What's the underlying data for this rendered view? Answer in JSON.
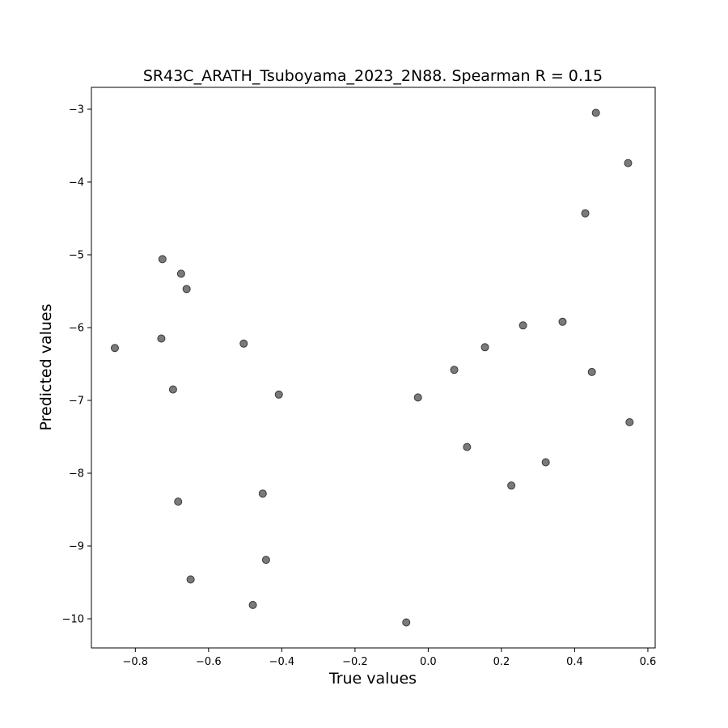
{
  "chart_data": {
    "type": "scatter",
    "title": "SR43C_ARATH_Tsuboyama_2023_2N88. Spearman R = 0.15",
    "xlabel": "True values",
    "ylabel": "Predicted values",
    "xlim": [
      -0.92,
      0.62
    ],
    "ylim": [
      -10.4,
      -2.7
    ],
    "xticks": [
      -0.8,
      -0.6,
      -0.4,
      -0.2,
      0.0,
      0.2,
      0.4,
      0.6
    ],
    "xtick_labels": [
      "−0.8",
      "−0.6",
      "−0.4",
      "−0.2",
      "0.0",
      "0.2",
      "0.4",
      "0.6"
    ],
    "yticks": [
      -3,
      -4,
      -5,
      -6,
      -7,
      -8,
      -9,
      -10
    ],
    "ytick_labels": [
      "−3",
      "−4",
      "−5",
      "−6",
      "−7",
      "−8",
      "−9",
      "−10"
    ],
    "grid": false,
    "marker_fill": "#7a7a7a",
    "marker_edge": "#3a3a3a",
    "points": [
      {
        "x": 0.458,
        "y": -3.05
      },
      {
        "x": 0.546,
        "y": -3.74
      },
      {
        "x": 0.429,
        "y": -4.43
      },
      {
        "x": -0.726,
        "y": -5.06
      },
      {
        "x": -0.675,
        "y": -5.26
      },
      {
        "x": -0.66,
        "y": -5.47
      },
      {
        "x": -0.856,
        "y": -6.28
      },
      {
        "x": -0.729,
        "y": -6.15
      },
      {
        "x": -0.504,
        "y": -6.22
      },
      {
        "x": 0.259,
        "y": -5.97
      },
      {
        "x": 0.367,
        "y": -5.92
      },
      {
        "x": 0.155,
        "y": -6.27
      },
      {
        "x": 0.071,
        "y": -6.58
      },
      {
        "x": 0.447,
        "y": -6.61
      },
      {
        "x": -0.697,
        "y": -6.85
      },
      {
        "x": -0.408,
        "y": -6.92
      },
      {
        "x": -0.028,
        "y": -6.96
      },
      {
        "x": 0.55,
        "y": -7.3
      },
      {
        "x": 0.106,
        "y": -7.64
      },
      {
        "x": 0.321,
        "y": -7.85
      },
      {
        "x": 0.227,
        "y": -8.17
      },
      {
        "x": -0.452,
        "y": -8.28
      },
      {
        "x": -0.683,
        "y": -8.39
      },
      {
        "x": -0.443,
        "y": -9.19
      },
      {
        "x": -0.649,
        "y": -9.46
      },
      {
        "x": -0.479,
        "y": -9.81
      },
      {
        "x": -0.06,
        "y": -10.05
      }
    ]
  }
}
